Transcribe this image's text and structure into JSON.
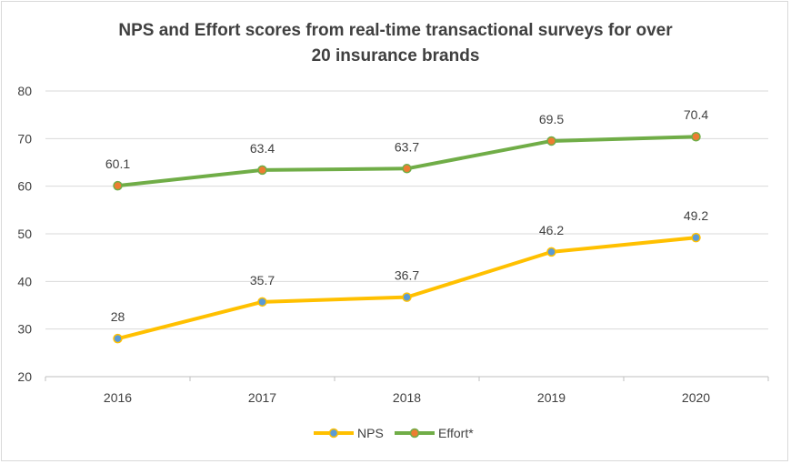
{
  "chart_data": {
    "type": "line",
    "title_lines": [
      "NPS and Effort scores from real-time transactional surveys for over",
      "20 insurance brands"
    ],
    "categories": [
      "2016",
      "2017",
      "2018",
      "2019",
      "2020"
    ],
    "series": [
      {
        "name": "NPS",
        "values": [
          28,
          35.7,
          36.7,
          46.2,
          49.2
        ],
        "line_color": "#ffc000",
        "marker_color": "#5b9bd5"
      },
      {
        "name": "Effort*",
        "values": [
          60.1,
          63.4,
          63.7,
          69.5,
          70.4
        ],
        "line_color": "#70ad47",
        "marker_color": "#ed7d31"
      }
    ],
    "data_labels": [
      [
        "28",
        "35.7",
        "36.7",
        "46.2",
        "49.2"
      ],
      [
        "60.1",
        "63.4",
        "63.7",
        "69.5",
        "70.4"
      ]
    ],
    "ylim": [
      20,
      80
    ],
    "yticks": [
      20,
      30,
      40,
      50,
      60,
      70,
      80
    ],
    "grid": true,
    "legend_position": "bottom",
    "xlabel": "",
    "ylabel": ""
  }
}
